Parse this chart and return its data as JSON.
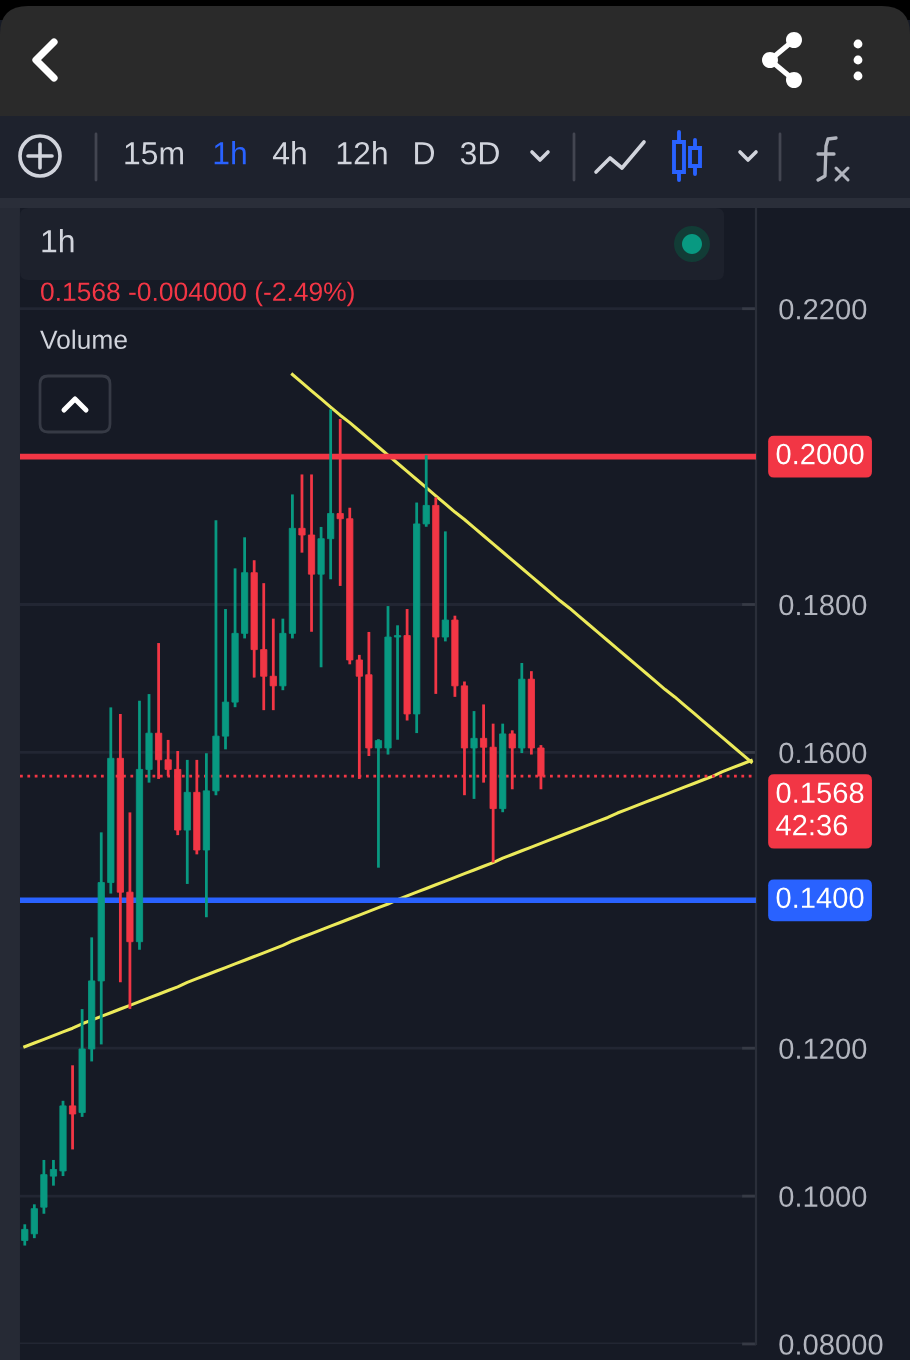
{
  "chart_data": {
    "type": "candlestick",
    "title": "1h",
    "subtitle": "0.1568 -0.004000 (-2.49%)",
    "categories": [
      null,
      null,
      null,
      null,
      null,
      null,
      null,
      null,
      null,
      null,
      null,
      null,
      null,
      null,
      null,
      null,
      null,
      null,
      null,
      null,
      null,
      null,
      null,
      null,
      null,
      null,
      null,
      null,
      null,
      null,
      null,
      null,
      null,
      null,
      null,
      null,
      null,
      null,
      null,
      null,
      null,
      null,
      null,
      null,
      null,
      null,
      null,
      null,
      null,
      null,
      null,
      null,
      null,
      null,
      null,
      null,
      null,
      null,
      null,
      null,
      null,
      null,
      null,
      null,
      null,
      null,
      null,
      null,
      null,
      null,
      null,
      null,
      null,
      null,
      null,
      null,
      null
    ],
    "ohlc": [
      [
        0.094,
        0.096,
        0.0935,
        0.0955
      ],
      [
        0.0949,
        0.0987,
        0.0945,
        0.0983
      ],
      [
        0.0985,
        0.1047,
        0.0978,
        0.1029
      ],
      [
        0.1027,
        0.1047,
        0.1016,
        0.1036
      ],
      [
        0.1034,
        0.1127,
        0.1029,
        0.1122
      ],
      [
        0.1122,
        0.1175,
        0.1065,
        0.1111
      ],
      [
        0.1113,
        0.1251,
        0.1109,
        0.1199
      ],
      [
        0.1199,
        0.1348,
        0.1184,
        0.1291
      ],
      [
        0.1291,
        0.149,
        0.1207,
        0.1424
      ],
      [
        0.1424,
        0.1659,
        0.1411,
        0.1592
      ],
      [
        0.1592,
        0.165,
        0.1291,
        0.1411
      ],
      [
        0.1411,
        0.1517,
        0.1255,
        0.1344
      ],
      [
        0.1344,
        0.1668,
        0.1335,
        0.1577
      ],
      [
        0.1577,
        0.1677,
        0.1561,
        0.1626
      ],
      [
        0.1626,
        0.1746,
        0.1566,
        0.159
      ],
      [
        0.159,
        0.1615,
        0.157,
        0.1577
      ],
      [
        0.1577,
        0.16,
        0.149,
        0.1495
      ],
      [
        0.1495,
        0.1588,
        0.1424,
        0.1546
      ],
      [
        0.1546,
        0.1588,
        0.1464,
        0.1468
      ],
      [
        0.1468,
        0.1597,
        0.1379,
        0.1548
      ],
      [
        0.1548,
        0.1912,
        0.1544,
        0.1622
      ],
      [
        0.1622,
        0.1792,
        0.1606,
        0.1668
      ],
      [
        0.1668,
        0.1847,
        0.1663,
        0.1761
      ],
      [
        0.1761,
        0.1889,
        0.1756,
        0.1843
      ],
      [
        0.1843,
        0.1858,
        0.1703,
        0.1739
      ],
      [
        0.1739,
        0.1827,
        0.1659,
        0.1703
      ],
      [
        0.1703,
        0.1779,
        0.1659,
        0.169
      ],
      [
        0.169,
        0.1779,
        0.1686,
        0.1761
      ],
      [
        0.1761,
        0.1947,
        0.1756,
        0.1903
      ],
      [
        0.1903,
        0.1974,
        0.1872,
        0.1894
      ],
      [
        0.1894,
        0.1974,
        0.1765,
        0.1841
      ],
      [
        0.1841,
        0.1903,
        0.1717,
        0.1889
      ],
      [
        0.1889,
        0.2062,
        0.1836,
        0.1923
      ],
      [
        0.1923,
        0.2049,
        0.1827,
        0.1916
      ],
      [
        0.1916,
        0.1929,
        0.1721,
        0.1725
      ],
      [
        0.1725,
        0.173,
        0.1566,
        0.1703
      ],
      [
        0.1705,
        0.1761,
        0.1597,
        0.1606
      ],
      [
        0.1606,
        0.1616,
        0.1446,
        0.1616
      ],
      [
        0.1606,
        0.1796,
        0.1599,
        0.1756
      ],
      [
        0.1756,
        0.177,
        0.1619,
        0.1758
      ],
      [
        0.1758,
        0.1792,
        0.1645,
        0.1652
      ],
      [
        0.1652,
        0.1936,
        0.1628,
        0.1909
      ],
      [
        0.1909,
        0.2,
        0.1907,
        0.1934
      ],
      [
        0.1934,
        0.1943,
        0.1681,
        0.1756
      ],
      [
        0.1756,
        0.1897,
        0.1752,
        0.1779
      ],
      [
        0.1779,
        0.1783,
        0.1677,
        0.169
      ],
      [
        0.169,
        0.1694,
        0.1544,
        0.1606
      ],
      [
        0.1606,
        0.1654,
        0.1539,
        0.1619
      ],
      [
        0.1619,
        0.1663,
        0.1561,
        0.1607
      ],
      [
        0.1607,
        0.1637,
        0.1453,
        0.1524
      ],
      [
        0.1524,
        0.1637,
        0.1521,
        0.1625
      ],
      [
        0.1625,
        0.1628,
        0.1552,
        0.1606
      ],
      [
        0.1606,
        0.1719,
        0.1601,
        0.1699
      ],
      [
        0.1699,
        0.1708,
        0.1599,
        0.1606
      ],
      [
        0.1606,
        0.1608,
        0.1552,
        0.1568
      ],
      null,
      null,
      null,
      null,
      null,
      null,
      null,
      null,
      null,
      null,
      null,
      null,
      null,
      null,
      null,
      null,
      null,
      null,
      null,
      null,
      null,
      null
    ],
    "colors": [
      "#089981",
      "#089981",
      "#089981",
      "#089981",
      "#089981",
      "#f23645",
      "#089981",
      "#089981",
      "#089981",
      "#089981",
      "#f23645",
      "#f23645",
      "#089981",
      "#089981",
      "#f23645",
      "#f23645",
      "#f23645",
      "#089981",
      "#f23645",
      "#089981",
      "#089981",
      "#089981",
      "#089981",
      "#089981",
      "#f23645",
      "#f23645",
      "#f23645",
      "#089981",
      "#089981",
      "#f23645",
      "#f23645",
      "#089981",
      "#089981",
      "#f23645",
      "#f23645",
      "#f23645",
      "#f23645",
      "#089981",
      "#089981",
      "#089981",
      "#f23645",
      "#089981",
      "#089981",
      "#f23645",
      "#089981",
      "#f23645",
      "#f23645",
      "#089981",
      "#f23645",
      "#f23645",
      "#089981",
      "#f23645",
      "#089981",
      "#f23645",
      "#f23645",
      null,
      null,
      null,
      null,
      null,
      null,
      null,
      null,
      null,
      null,
      null,
      null,
      null,
      null,
      null,
      null,
      null,
      null,
      null,
      null,
      null,
      null
    ],
    "series": [
      {
        "type": "line",
        "color": "#ecea5a",
        "values": [
          null,
          null,
          null,
          null,
          null,
          null,
          null,
          null,
          null,
          null,
          null,
          null,
          null,
          null,
          null,
          null,
          null,
          null,
          null,
          null,
          null,
          null,
          null,
          null,
          null,
          null,
          null,
          null,
          0.2111,
          0.21,
          0.2089,
          0.2078,
          0.2067,
          0.2056,
          0.2046,
          0.2035,
          0.2024,
          0.2013,
          0.2002,
          0.1991,
          0.198,
          0.1969,
          0.1958,
          0.1947,
          0.1936,
          0.1925,
          0.1915,
          0.1904,
          0.1893,
          0.1882,
          0.1871,
          0.186,
          0.1849,
          0.1838,
          0.1827,
          0.1816,
          0.1805,
          0.1795,
          0.1784,
          0.1773,
          0.1762,
          0.1751,
          0.174,
          0.1729,
          0.1718,
          0.1707,
          0.1696,
          0.1685,
          0.1675,
          0.1664,
          0.1653,
          0.1642,
          0.1631,
          0.162,
          0.1609,
          0.1598,
          0.1587
        ]
      },
      {
        "type": "line",
        "color": "#ecea5a",
        "values": [
          0.1202,
          0.1207,
          0.1212,
          0.1217,
          0.1222,
          0.1227,
          0.1233,
          0.1238,
          0.1243,
          0.1248,
          0.1253,
          0.1258,
          0.1263,
          0.1268,
          0.1273,
          0.1278,
          0.1283,
          0.1289,
          0.1294,
          0.1299,
          0.1304,
          0.1309,
          0.1314,
          0.1319,
          0.1324,
          0.1329,
          0.1334,
          0.1339,
          0.1345,
          0.135,
          0.1355,
          0.136,
          0.1365,
          0.137,
          0.1375,
          0.138,
          0.1385,
          0.139,
          0.1395,
          0.1401,
          0.1406,
          0.1411,
          0.1416,
          0.1421,
          0.1426,
          0.1431,
          0.1436,
          0.1441,
          0.1446,
          0.1451,
          0.1457,
          0.1462,
          0.1467,
          0.1472,
          0.1477,
          0.1482,
          0.1487,
          0.1492,
          0.1497,
          0.1502,
          0.1507,
          0.1512,
          0.1518,
          0.1523,
          0.1528,
          0.1533,
          0.1538,
          0.1543,
          0.1548,
          0.1553,
          0.1558,
          0.1563,
          0.1568,
          0.1574,
          0.1579,
          0.1584,
          0.1589
        ]
      }
    ],
    "ylim": [
      0.08,
      0.2347
    ],
    "yticks": [
      {
        "value": 0.22,
        "label": "0.2200"
      },
      {
        "value": 0.18,
        "label": "0.1800"
      },
      {
        "value": 0.16,
        "label": "0.1600"
      },
      {
        "value": 0.12,
        "label": "0.1200"
      },
      {
        "value": 0.1,
        "label": "0.1000"
      },
      {
        "value": 0.08,
        "label": "0.08000"
      }
    ],
    "tick_labels": "y",
    "grid": "y",
    "ref_lines": [
      {
        "axis": "y",
        "value": 0.2,
        "label": "0.2000",
        "color": "#f23645",
        "line_style": "solid"
      },
      {
        "axis": "y",
        "value": 0.14,
        "label": "0.1400",
        "color": "#2962ff",
        "line_style": "solid"
      },
      {
        "axis": "y",
        "value": 0.1568,
        "label": "0.1568\n42:36",
        "color": "#f23645",
        "line_style": "dotted"
      }
    ],
    "annotations": [
      "15m",
      "1h",
      "4h",
      "12h",
      "D",
      "3D",
      "Volume"
    ]
  }
}
